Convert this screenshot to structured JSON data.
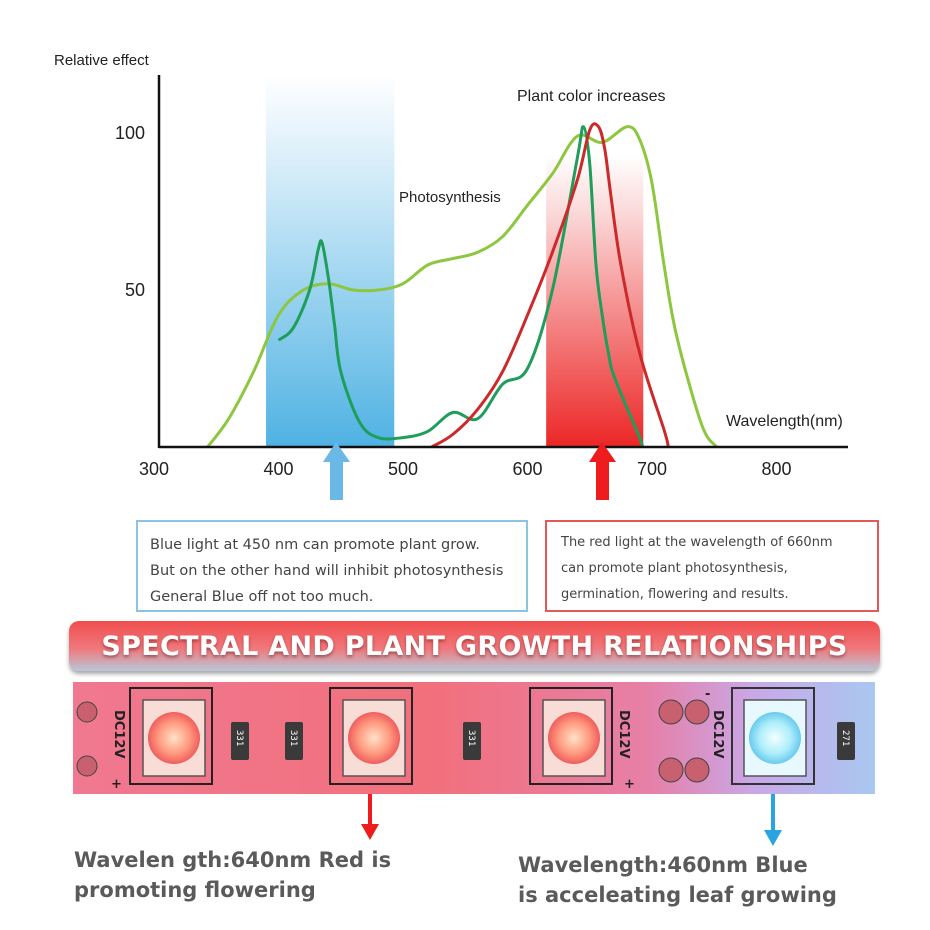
{
  "chart_data": {
    "type": "line",
    "ylabel": "Relative effect",
    "xlabel": "Wavelength(nm)",
    "y_ticks": [
      "100",
      "50"
    ],
    "x_ticks": [
      "300",
      "400",
      "500",
      "600",
      "700",
      "800"
    ],
    "xlim": [
      300,
      850
    ],
    "ylim": [
      0,
      100
    ],
    "bands": [
      {
        "range": [
          390,
          493
        ],
        "color": "#63b8e6"
      },
      {
        "range": [
          615,
          693
        ],
        "color": "#ee3333"
      }
    ],
    "annotations": {
      "photosynthesis": "Photosynthesis",
      "plant_color": "Plant color increases"
    },
    "series": [
      {
        "color": "#8dc63f",
        "x": [
          343,
          360,
          380,
          400,
          420,
          440,
          460,
          480,
          500,
          520,
          540,
          560,
          580,
          600,
          620,
          640,
          660,
          680,
          690,
          700,
          710,
          720,
          740,
          752
        ],
        "y": [
          0,
          9,
          24,
          42,
          50,
          52,
          50,
          50,
          52,
          58,
          60,
          62,
          67,
          77,
          87,
          99,
          97,
          102,
          98,
          84,
          57,
          35,
          7,
          0
        ]
      },
      {
        "color": "#1f9d5a",
        "x": [
          400,
          412,
          425,
          432,
          435,
          440,
          445,
          450,
          465,
          480,
          500,
          520,
          540,
          560,
          580,
          600,
          620,
          640,
          645,
          650,
          655,
          660,
          665,
          670,
          690,
          692
        ],
        "y": [
          34,
          38,
          50,
          63,
          65,
          54,
          39,
          24,
          8,
          3,
          3,
          5,
          11,
          9,
          20,
          25,
          50,
          92,
          102,
          90,
          58,
          42,
          30,
          22,
          3,
          0
        ]
      },
      {
        "color": "#cc2a2a",
        "x": [
          523,
          540,
          560,
          580,
          600,
          620,
          640,
          650,
          657,
          662,
          667,
          675,
          690,
          710,
          713
        ],
        "y": [
          0,
          4,
          12,
          24,
          42,
          62,
          85,
          101,
          102,
          95,
          80,
          58,
          30,
          5,
          0
        ]
      }
    ]
  },
  "boxes": {
    "blue": {
      "line1": "Blue light at 450 nm can promote plant grow.",
      "line2": "But on the other hand will inhibit photosynthesis",
      "line3": "General Blue off not too much."
    },
    "red": {
      "line1": "The red light at the wavelength of 660nm",
      "line2": "can promote plant photosynthesis,",
      "line3": "germination, flowering and results."
    }
  },
  "banner": "SPECTRAL AND PLANT GROWTH RELATIONSHIPS",
  "strip": {
    "labels": [
      "DC12V",
      "DC12V",
      "DC12V"
    ],
    "resistors": [
      "331",
      "331",
      "331",
      "271"
    ],
    "signs": [
      "+",
      "-"
    ]
  },
  "captions": {
    "red": {
      "line1": "Wavelen gth:640nm Red is",
      "line2": "promoting flowering"
    },
    "blue": {
      "line1": "Wavelength:460nm Blue",
      "line2": "is acceleating leaf growing"
    }
  },
  "colors": {
    "blue_arrow": "#6ab8e6",
    "red_arrow": "#ee1c1c",
    "strip_pink": "#f07090",
    "strip_blue": "#66ccee"
  }
}
